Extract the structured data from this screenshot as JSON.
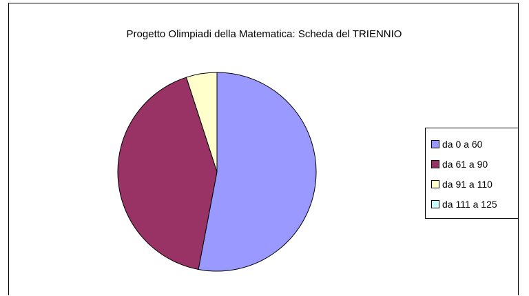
{
  "chart_data": {
    "type": "pie",
    "title": "Progetto Olimpiadi della Matematica: Scheda del TRIENNIO",
    "categories": [
      "da 0 a 60",
      "da 61 a 90",
      "da 91 a 110",
      "da 111 a 125"
    ],
    "values": [
      53,
      42,
      5,
      0
    ],
    "colors": [
      "#9999ff",
      "#993366",
      "#ffffcc",
      "#ccffff"
    ],
    "legend_position": "right"
  }
}
